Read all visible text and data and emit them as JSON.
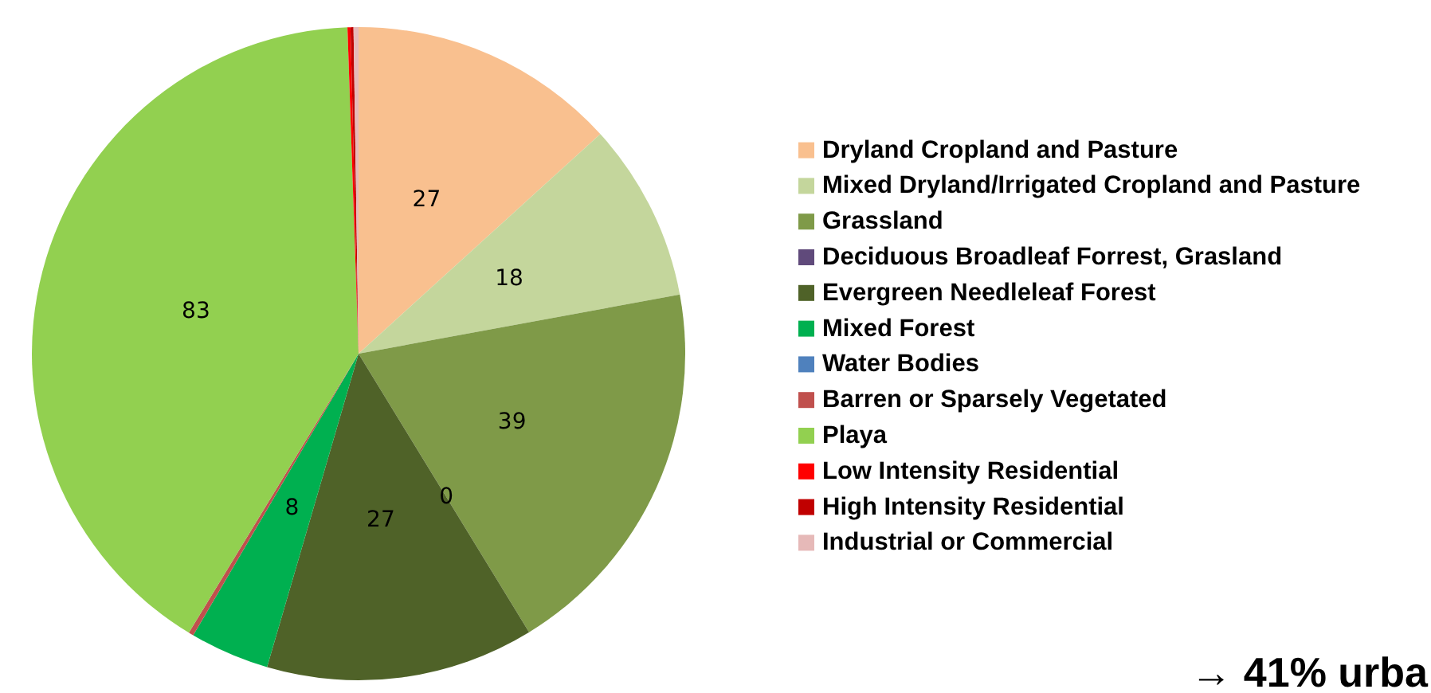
{
  "chart_data": {
    "type": "pie",
    "categories": [
      "Dryland Cropland and Pasture",
      "Mixed Dryland/Irrigated Cropland and Pasture",
      "Grassland",
      "Deciduous Broadleaf Forrest, Grasland",
      "Evergreen Needleleaf Forest",
      "Mixed Forest",
      "Water Bodies",
      "Barren or Sparsely Vegetated",
      "Playa",
      "Low Intensity Residential",
      "High Intensity Residential",
      "Industrial or Commercial"
    ],
    "values": [
      27,
      18,
      39,
      0,
      27,
      8,
      0,
      0.5,
      83,
      0.3,
      0.3,
      0.5
    ],
    "value_labels": [
      "27",
      "18",
      "39",
      "0",
      "27",
      "8",
      null,
      null,
      "83",
      null,
      null,
      null
    ],
    "colors": [
      "#f9c08f",
      "#c4d69c",
      "#7f9a48",
      "#604a7b",
      "#4f6228",
      "#00b050",
      "#4f81bd",
      "#c0504d",
      "#92d050",
      "#ff0000",
      "#c00000",
      "#e6b9b8"
    ],
    "legend": "right",
    "annotations": [
      "→ 41% urba"
    ]
  }
}
